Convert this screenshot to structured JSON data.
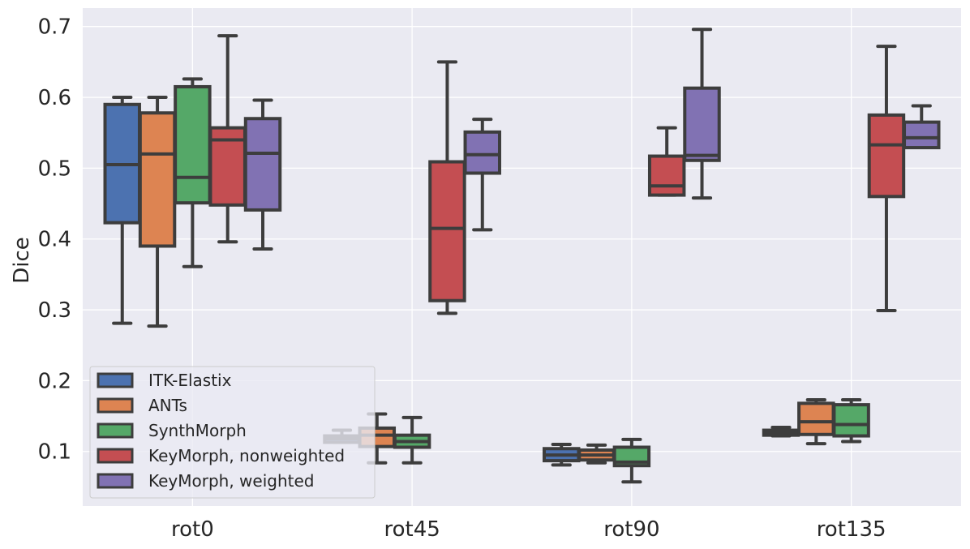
{
  "chart_data": {
    "type": "box",
    "title": "",
    "xlabel": "",
    "ylabel": "Dice",
    "ylim": [
      0.023,
      0.726
    ],
    "yticks": [
      0.1,
      0.2,
      0.3,
      0.4,
      0.5,
      0.6,
      0.7
    ],
    "ytick_labels": [
      "0.1",
      "0.2",
      "0.3",
      "0.4",
      "0.5",
      "0.6",
      "0.7"
    ],
    "categories": [
      "rot0",
      "rot45",
      "rot90",
      "rot135"
    ],
    "grid": true,
    "legend": {
      "placement": "lower-left"
    },
    "series": [
      {
        "name": "ITK-Elastix",
        "color": "#4c72b0",
        "boxes": [
          {
            "category": "rot0",
            "whislo": 0.281,
            "q1": 0.423,
            "med": 0.505,
            "q3": 0.59,
            "whishi": 0.6
          },
          {
            "category": "rot45",
            "whislo": 0.113,
            "q1": 0.113,
            "med": 0.118,
            "q3": 0.122,
            "whishi": 0.13
          },
          {
            "category": "rot90",
            "whislo": 0.081,
            "q1": 0.087,
            "med": 0.095,
            "q3": 0.104,
            "whishi": 0.11
          },
          {
            "category": "rot135",
            "whislo": 0.122,
            "q1": 0.123,
            "med": 0.126,
            "q3": 0.13,
            "whishi": 0.134
          }
        ]
      },
      {
        "name": "ANTs",
        "color": "#dd8452",
        "boxes": [
          {
            "category": "rot0",
            "whislo": 0.277,
            "q1": 0.39,
            "med": 0.52,
            "q3": 0.578,
            "whishi": 0.6
          },
          {
            "category": "rot45",
            "whislo": 0.084,
            "q1": 0.107,
            "med": 0.123,
            "q3": 0.133,
            "whishi": 0.153
          },
          {
            "category": "rot90",
            "whislo": 0.084,
            "q1": 0.088,
            "med": 0.095,
            "q3": 0.102,
            "whishi": 0.109
          },
          {
            "category": "rot135",
            "whislo": 0.111,
            "q1": 0.124,
            "med": 0.142,
            "q3": 0.168,
            "whishi": 0.173
          }
        ]
      },
      {
        "name": "SynthMorph",
        "color": "#55a868",
        "boxes": [
          {
            "category": "rot0",
            "whislo": 0.361,
            "q1": 0.451,
            "med": 0.487,
            "q3": 0.615,
            "whishi": 0.626
          },
          {
            "category": "rot45",
            "whislo": 0.084,
            "q1": 0.106,
            "med": 0.114,
            "q3": 0.123,
            "whishi": 0.148
          },
          {
            "category": "rot90",
            "whislo": 0.057,
            "q1": 0.08,
            "med": 0.085,
            "q3": 0.106,
            "whishi": 0.117
          },
          {
            "category": "rot135",
            "whislo": 0.114,
            "q1": 0.122,
            "med": 0.138,
            "q3": 0.166,
            "whishi": 0.173
          }
        ]
      },
      {
        "name": "KeyMorph, nonweighted",
        "color": "#c44e52",
        "boxes": [
          {
            "category": "rot0",
            "whislo": 0.396,
            "q1": 0.448,
            "med": 0.54,
            "q3": 0.557,
            "whishi": 0.687
          },
          {
            "category": "rot45",
            "whislo": 0.295,
            "q1": 0.313,
            "med": 0.415,
            "q3": 0.509,
            "whishi": 0.65
          },
          {
            "category": "rot90",
            "whislo": 0.462,
            "q1": 0.462,
            "med": 0.475,
            "q3": 0.517,
            "whishi": 0.557
          },
          {
            "category": "rot135",
            "whislo": 0.299,
            "q1": 0.46,
            "med": 0.533,
            "q3": 0.575,
            "whishi": 0.672
          }
        ]
      },
      {
        "name": "KeyMorph, weighted",
        "color": "#8172b3",
        "boxes": [
          {
            "category": "rot0",
            "whislo": 0.386,
            "q1": 0.441,
            "med": 0.521,
            "q3": 0.57,
            "whishi": 0.596
          },
          {
            "category": "rot45",
            "whislo": 0.413,
            "q1": 0.493,
            "med": 0.519,
            "q3": 0.551,
            "whishi": 0.569
          },
          {
            "category": "rot90",
            "whislo": 0.458,
            "q1": 0.511,
            "med": 0.518,
            "q3": 0.613,
            "whishi": 0.696
          },
          {
            "category": "rot135",
            "whislo": 0.529,
            "q1": 0.529,
            "med": 0.543,
            "q3": 0.565,
            "whishi": 0.588
          }
        ]
      }
    ]
  }
}
